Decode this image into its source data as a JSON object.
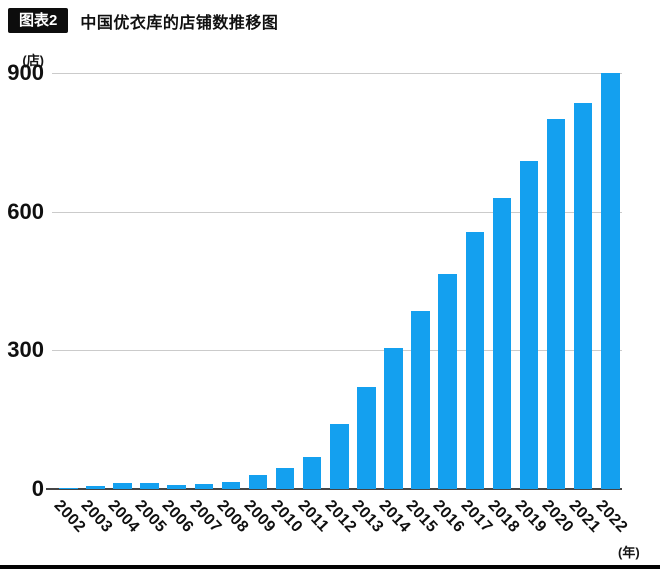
{
  "header": {
    "badge": "图表2",
    "title": "中国优衣库的店铺数推移图"
  },
  "chart_data": {
    "type": "bar",
    "title": "中国优衣库的店铺数推移图",
    "y_unit_label": "(店)",
    "x_unit_label": "(年)",
    "categories": [
      "2002",
      "2003",
      "2004",
      "2005",
      "2006",
      "2007",
      "2008",
      "2009",
      "2010",
      "2011",
      "2012",
      "2013",
      "2014",
      "2015",
      "2016",
      "2017",
      "2018",
      "2019",
      "2020",
      "2021",
      "2022"
    ],
    "values": [
      2,
      7,
      13,
      12,
      9,
      11,
      15,
      30,
      45,
      70,
      140,
      220,
      305,
      385,
      465,
      555,
      630,
      710,
      800,
      835,
      900
    ],
    "ylim": [
      0,
      900
    ],
    "yticks": [
      0,
      300,
      600,
      900
    ],
    "grid": true,
    "legend_position": "none",
    "bar_color": "#14A0EF",
    "gridline_color": "#cbcbcb",
    "axis_color": "#454545"
  }
}
